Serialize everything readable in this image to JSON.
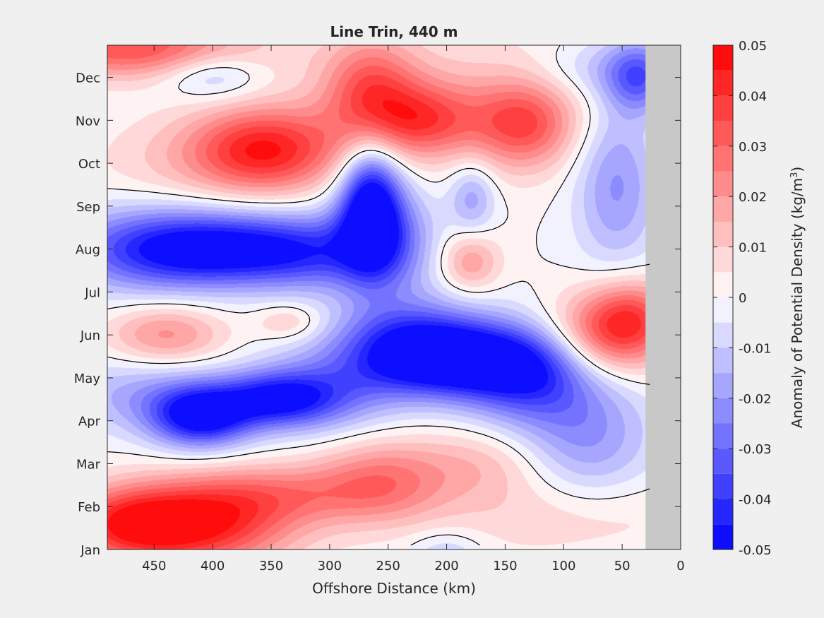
{
  "chart_data": {
    "type": "heatmap",
    "subtype": "filled-contour",
    "title": "Line Trin, 440 m",
    "xlabel": "Offshore Distance (km)",
    "x_reversed": true,
    "xlim": [
      0,
      490
    ],
    "xticks": [
      450,
      400,
      350,
      300,
      250,
      200,
      150,
      100,
      50,
      0
    ],
    "ylim": [
      1,
      12.75
    ],
    "yticks": [
      {
        "value": 1,
        "label": "Jan"
      },
      {
        "value": 2,
        "label": "Feb"
      },
      {
        "value": 3,
        "label": "Mar"
      },
      {
        "value": 4,
        "label": "Apr"
      },
      {
        "value": 5,
        "label": "May"
      },
      {
        "value": 6,
        "label": "Jun"
      },
      {
        "value": 7,
        "label": "Jul"
      },
      {
        "value": 8,
        "label": "Aug"
      },
      {
        "value": 9,
        "label": "Sep"
      },
      {
        "value": 10,
        "label": "Oct"
      },
      {
        "value": 11,
        "label": "Nov"
      },
      {
        "value": 12,
        "label": "Dec"
      }
    ],
    "colorbar": {
      "label": "Anomaly of Potential Density (kg/m",
      "label_sup": "3",
      "label_close": ")",
      "range": [
        -0.05,
        0.05
      ],
      "ticks": [
        {
          "value": 0.05,
          "label": "0.05"
        },
        {
          "value": 0.04,
          "label": "0.04"
        },
        {
          "value": 0.03,
          "label": "0.03"
        },
        {
          "value": 0.02,
          "label": "0.02"
        },
        {
          "value": 0.01,
          "label": "0.01"
        },
        {
          "value": 0,
          "label": "0"
        },
        {
          "value": -0.01,
          "label": "-0.01"
        },
        {
          "value": -0.02,
          "label": "-0.02"
        },
        {
          "value": -0.03,
          "label": "-0.03"
        },
        {
          "value": -0.04,
          "label": "-0.04"
        },
        {
          "value": -0.05,
          "label": "-0.05"
        }
      ],
      "levels": 20,
      "colormap": "blue-white-red"
    },
    "no_data_region": {
      "x": [
        0,
        30
      ],
      "color": "#c8c8c8"
    },
    "features": [
      {
        "x": 355,
        "y": 10.3,
        "sx": 45,
        "sy": 0.7,
        "amp": 0.042
      },
      {
        "x": 265,
        "y": 11.6,
        "sx": 28,
        "sy": 0.9,
        "amp": 0.03
      },
      {
        "x": 218,
        "y": 11.0,
        "sx": 32,
        "sy": 0.6,
        "amp": 0.028
      },
      {
        "x": 135,
        "y": 10.9,
        "sx": 30,
        "sy": 0.7,
        "amp": 0.03
      },
      {
        "x": 470,
        "y": 12.7,
        "sx": 70,
        "sy": 0.5,
        "amp": 0.035
      },
      {
        "x": 180,
        "y": 11.5,
        "sx": 110,
        "sy": 1.2,
        "amp": 0.01
      },
      {
        "x": 430,
        "y": 10.0,
        "sx": 60,
        "sy": 0.8,
        "amp": 0.008
      },
      {
        "x": 410,
        "y": 1.55,
        "sx": 55,
        "sy": 0.7,
        "amp": 0.042
      },
      {
        "x": 475,
        "y": 1.6,
        "sx": 40,
        "sy": 0.6,
        "amp": 0.032
      },
      {
        "x": 255,
        "y": 2.6,
        "sx": 40,
        "sy": 0.7,
        "amp": 0.024
      },
      {
        "x": 345,
        "y": 2.3,
        "sx": 60,
        "sy": 0.5,
        "amp": 0.02
      },
      {
        "x": 170,
        "y": 3.0,
        "sx": 40,
        "sy": 0.6,
        "amp": 0.012
      },
      {
        "x": 100,
        "y": 1.8,
        "sx": 80,
        "sy": 0.7,
        "amp": 0.01
      },
      {
        "x": 180,
        "y": 7.7,
        "sx": 18,
        "sy": 0.5,
        "amp": 0.02
      },
      {
        "x": 62,
        "y": 6.0,
        "sx": 35,
        "sy": 0.7,
        "amp": 0.036
      },
      {
        "x": 40,
        "y": 6.5,
        "sx": 25,
        "sy": 0.6,
        "amp": 0.02
      },
      {
        "x": 440,
        "y": 6.0,
        "sx": 35,
        "sy": 0.5,
        "amp": 0.022
      },
      {
        "x": 335,
        "y": 6.3,
        "sx": 20,
        "sy": 0.3,
        "amp": 0.012
      },
      {
        "x": 400,
        "y": 12.05,
        "sx": 30,
        "sy": 0.4,
        "amp": -0.016
      },
      {
        "x": 178,
        "y": 9.2,
        "sx": 14,
        "sy": 0.6,
        "amp": -0.018
      },
      {
        "x": 200,
        "y": 0.85,
        "sx": 22,
        "sy": 0.4,
        "amp": -0.012
      },
      {
        "x": 265,
        "y": 9.1,
        "sx": 18,
        "sy": 1.0,
        "amp": -0.048
      },
      {
        "x": 255,
        "y": 8.2,
        "sx": 30,
        "sy": 0.9,
        "amp": -0.03
      },
      {
        "x": 385,
        "y": 8.0,
        "sx": 55,
        "sy": 0.6,
        "amp": -0.042
      },
      {
        "x": 460,
        "y": 8.0,
        "sx": 55,
        "sy": 0.7,
        "amp": -0.03
      },
      {
        "x": 315,
        "y": 7.9,
        "sx": 40,
        "sy": 0.6,
        "amp": -0.022
      },
      {
        "x": 190,
        "y": 5.4,
        "sx": 55,
        "sy": 0.6,
        "amp": -0.05
      },
      {
        "x": 130,
        "y": 5.0,
        "sx": 40,
        "sy": 0.8,
        "amp": -0.03
      },
      {
        "x": 230,
        "y": 5.9,
        "sx": 45,
        "sy": 0.7,
        "amp": -0.03
      },
      {
        "x": 80,
        "y": 3.6,
        "sx": 40,
        "sy": 1.1,
        "amp": -0.02
      },
      {
        "x": 410,
        "y": 4.1,
        "sx": 30,
        "sy": 0.5,
        "amp": -0.05
      },
      {
        "x": 345,
        "y": 4.5,
        "sx": 35,
        "sy": 0.45,
        "amp": -0.04
      },
      {
        "x": 300,
        "y": 4.7,
        "sx": 45,
        "sy": 0.7,
        "amp": -0.02
      },
      {
        "x": 460,
        "y": 4.6,
        "sx": 50,
        "sy": 0.6,
        "amp": -0.016
      },
      {
        "x": 55,
        "y": 9.6,
        "sx": 25,
        "sy": 1.4,
        "amp": -0.022
      },
      {
        "x": 35,
        "y": 12.0,
        "sx": 20,
        "sy": 0.6,
        "amp": -0.03
      },
      {
        "x": 70,
        "y": 12.2,
        "sx": 40,
        "sy": 0.5,
        "amp": -0.012
      }
    ]
  }
}
